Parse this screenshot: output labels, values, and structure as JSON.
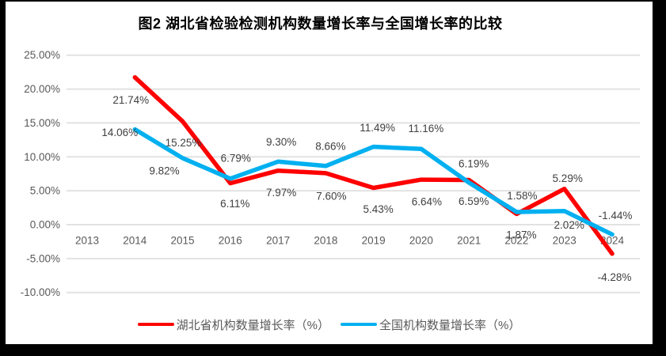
{
  "chart_data": {
    "type": "line",
    "title": "图2  湖北省检验检测机构数量增长率与全国增长率的比较",
    "categories": [
      "2013",
      "2014",
      "2015",
      "2016",
      "2017",
      "2018",
      "2019",
      "2020",
      "2021",
      "2022",
      "2023",
      "2024"
    ],
    "series": [
      {
        "name": "湖北省机构数量增长率（%）",
        "color": "#FE0000",
        "values": [
          null,
          21.74,
          15.25,
          6.11,
          7.97,
          7.6,
          5.43,
          6.64,
          6.59,
          1.58,
          5.29,
          -4.28
        ],
        "labels": [
          "",
          "21.74%",
          "15.25%",
          "6.11%",
          "7.97%",
          "7.60%",
          "5.43%",
          "6.64%",
          "6.59%",
          "1.58%",
          "5.29%",
          "-4.28%"
        ]
      },
      {
        "name": "全国机构数量增长率（%）",
        "color": "#00B0F0",
        "values": [
          null,
          14.06,
          9.82,
          6.79,
          9.3,
          8.66,
          11.49,
          11.16,
          6.19,
          1.87,
          2.02,
          -1.44
        ],
        "labels": [
          "",
          "14.06%",
          "9.82%",
          "6.79%",
          "9.30%",
          "8.66%",
          "11.49%",
          "11.16%",
          "6.19%",
          "1.87%",
          "2.02%",
          "-1.44%"
        ]
      }
    ],
    "y_axis": {
      "min": -10,
      "max": 25,
      "step": 5,
      "tick_labels": [
        "25.00%",
        "20.00%",
        "15.00%",
        "10.00%",
        "5.00%",
        "0.00%",
        "-5.00%",
        "-10.00%"
      ]
    },
    "grid": true,
    "legend_position": "bottom",
    "gridline_color": "#E2E2E2",
    "axis_text_color": "#595959",
    "data_label_color": "#404040"
  }
}
